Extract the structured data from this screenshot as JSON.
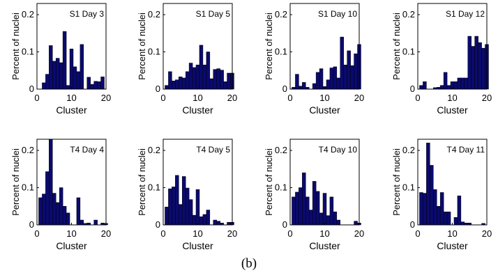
{
  "caption": "(b)",
  "style": {
    "bar_fill": "#0a0a6e",
    "bar_edge": "#000000",
    "axis_color": "#000000"
  },
  "chart_data": [
    {
      "type": "bar",
      "title": "S1 Day 3",
      "xlabel": "Cluster",
      "ylabel": "Percent of nuclei",
      "x": [
        1,
        2,
        3,
        4,
        5,
        6,
        7,
        8,
        9,
        10,
        11,
        12,
        13,
        14,
        15,
        16,
        17,
        18,
        19,
        20
      ],
      "values": [
        0.0,
        0.017,
        0.04,
        0.117,
        0.075,
        0.083,
        0.071,
        0.155,
        0.01,
        0.108,
        0.06,
        0.047,
        0.12,
        0.0,
        0.032,
        0.013,
        0.021,
        0.02,
        0.033,
        0.0
      ],
      "xlim": [
        0,
        20
      ],
      "ylim": [
        0,
        0.23
      ],
      "xticks": [
        "0",
        "10",
        "20"
      ],
      "yticks": [
        "0",
        "0.1",
        "0.2"
      ],
      "grid": false
    },
    {
      "type": "bar",
      "title": "S1 Day 5",
      "xlabel": "Cluster",
      "ylabel": "Percent of nuclei",
      "x": [
        1,
        2,
        3,
        4,
        5,
        6,
        7,
        8,
        9,
        10,
        11,
        12,
        13,
        14,
        15,
        16,
        17,
        18,
        19,
        20
      ],
      "values": [
        0.01,
        0.047,
        0.022,
        0.025,
        0.033,
        0.03,
        0.047,
        0.07,
        0.058,
        0.065,
        0.118,
        0.065,
        0.1,
        0.028,
        0.053,
        0.055,
        0.051,
        0.02,
        0.043,
        0.043
      ],
      "xlim": [
        0,
        20
      ],
      "ylim": [
        0,
        0.23
      ],
      "xticks": [
        "0",
        "10",
        "20"
      ],
      "yticks": [
        "0",
        "0.1",
        "0.2"
      ],
      "grid": false
    },
    {
      "type": "bar",
      "title": "S1 Day 10",
      "xlabel": "Cluster",
      "ylabel": "Percent of nuclei",
      "x": [
        1,
        2,
        3,
        4,
        5,
        6,
        7,
        8,
        9,
        10,
        11,
        12,
        13,
        14,
        15,
        16,
        17,
        18,
        19,
        20
      ],
      "values": [
        0.005,
        0.04,
        0.008,
        0.018,
        0.005,
        0.0,
        0.015,
        0.045,
        0.055,
        0.007,
        0.025,
        0.057,
        0.06,
        0.03,
        0.14,
        0.065,
        0.103,
        0.063,
        0.095,
        0.12
      ],
      "xlim": [
        0,
        20
      ],
      "ylim": [
        0,
        0.23
      ],
      "xticks": [
        "0",
        "10",
        "20"
      ],
      "yticks": [
        "0",
        "0.1",
        "0.2"
      ],
      "grid": false
    },
    {
      "type": "bar",
      "title": "S1 Day 12",
      "xlabel": "Cluster",
      "ylabel": "Percent of nuclei",
      "x": [
        1,
        2,
        3,
        4,
        5,
        6,
        7,
        8,
        9,
        10,
        11,
        12,
        13,
        14,
        15,
        16,
        17,
        18,
        19,
        20
      ],
      "values": [
        0.01,
        0.02,
        0.0,
        0.0,
        0.004,
        0.005,
        0.01,
        0.045,
        0.01,
        0.02,
        0.02,
        0.03,
        0.03,
        0.03,
        0.142,
        0.115,
        0.142,
        0.125,
        0.11,
        0.12
      ],
      "xlim": [
        0,
        20
      ],
      "ylim": [
        0,
        0.23
      ],
      "xticks": [
        "0",
        "10",
        "20"
      ],
      "yticks": [
        "0",
        "0.1",
        "0.2"
      ],
      "grid": false
    },
    {
      "type": "bar",
      "title": "T4 Day 4",
      "xlabel": "Cluster",
      "ylabel": "Percent of nuclei",
      "x": [
        1,
        2,
        3,
        4,
        5,
        6,
        7,
        8,
        9,
        10,
        11,
        12,
        13,
        14,
        15,
        16,
        17,
        18,
        19,
        20
      ],
      "values": [
        0.073,
        0.083,
        0.143,
        0.23,
        0.085,
        0.06,
        0.1,
        0.05,
        0.032,
        0.0,
        0.0,
        0.073,
        0.013,
        0.004,
        0.005,
        0.0,
        0.013,
        0.0,
        0.005,
        0.004
      ],
      "xlim": [
        0,
        20
      ],
      "ylim": [
        0,
        0.23
      ],
      "xticks": [
        "0",
        "10",
        "20"
      ],
      "yticks": [
        "0",
        "0.1",
        "0.2"
      ],
      "grid": false
    },
    {
      "type": "bar",
      "title": "T4 Day 5",
      "xlabel": "Cluster",
      "ylabel": "Percent of nuclei",
      "x": [
        1,
        2,
        3,
        4,
        5,
        6,
        7,
        8,
        9,
        10,
        11,
        12,
        13,
        14,
        15,
        16,
        17,
        18,
        19,
        20
      ],
      "values": [
        0.048,
        0.097,
        0.102,
        0.133,
        0.055,
        0.13,
        0.099,
        0.068,
        0.026,
        0.095,
        0.022,
        0.028,
        0.04,
        0.0,
        0.013,
        0.01,
        0.005,
        0.0,
        0.007,
        0.007
      ],
      "xlim": [
        0,
        20
      ],
      "ylim": [
        0,
        0.23
      ],
      "xticks": [
        "0",
        "10",
        "20"
      ],
      "yticks": [
        "0",
        "0.1",
        "0.2"
      ],
      "grid": false
    },
    {
      "type": "bar",
      "title": "T4 Day 10",
      "xlabel": "Cluster",
      "ylabel": "Percent of nuclei",
      "x": [
        1,
        2,
        3,
        4,
        5,
        6,
        7,
        8,
        9,
        10,
        11,
        12,
        13,
        14,
        15,
        16,
        17,
        18,
        19,
        20
      ],
      "values": [
        0.075,
        0.088,
        0.1,
        0.14,
        0.075,
        0.04,
        0.117,
        0.09,
        0.032,
        0.085,
        0.025,
        0.075,
        0.035,
        0.013,
        0.0,
        0.0,
        0.0,
        0.0,
        0.01,
        0.005
      ],
      "xlim": [
        0,
        20
      ],
      "ylim": [
        0,
        0.23
      ],
      "xticks": [
        "0",
        "10",
        "20"
      ],
      "yticks": [
        "0",
        "0.1",
        "0.2"
      ],
      "grid": false
    },
    {
      "type": "bar",
      "title": "T4 Day 11",
      "xlabel": "Cluster",
      "ylabel": "Percent of nuclei",
      "x": [
        1,
        2,
        3,
        4,
        5,
        6,
        7,
        8,
        9,
        10,
        11,
        12,
        13,
        14,
        15,
        16,
        17,
        18,
        19,
        20
      ],
      "values": [
        0.087,
        0.085,
        0.22,
        0.16,
        0.095,
        0.05,
        0.087,
        0.035,
        0.035,
        0.0,
        0.02,
        0.078,
        0.008,
        0.005,
        0.005,
        0.0,
        0.0,
        0.0,
        0.004,
        0.0
      ],
      "xlim": [
        0,
        20
      ],
      "ylim": [
        0,
        0.23
      ],
      "xticks": [
        "0",
        "10",
        "20"
      ],
      "yticks": [
        "0",
        "0.1",
        "0.2"
      ],
      "grid": false
    }
  ]
}
